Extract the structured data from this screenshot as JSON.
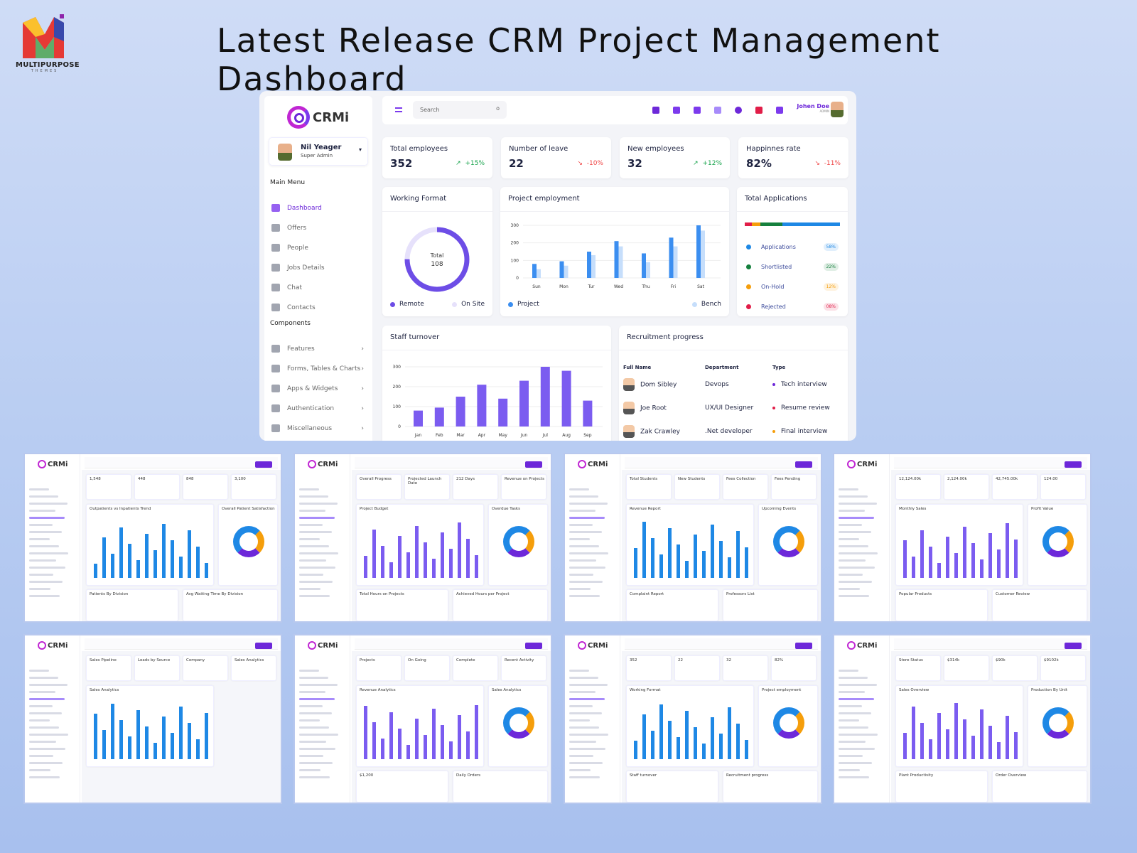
{
  "brand": {
    "logo_letter": "M",
    "name": "MULTIPURPOSE",
    "sub": "THEMES"
  },
  "headline": "Latest Release CRM Project Management Dashboard",
  "app": {
    "logo": "CRMi",
    "user": {
      "name": "Nil Yeager",
      "role": "Super Admin"
    },
    "main_menu_label": "Main Menu",
    "main_menu": [
      {
        "label": "Dashboard",
        "icon": "grid-icon",
        "active": true
      },
      {
        "label": "Offers",
        "icon": "pie-icon"
      },
      {
        "label": "People",
        "icon": "flag-icon"
      },
      {
        "label": "Jobs Details",
        "icon": "clock-icon"
      },
      {
        "label": "Chat",
        "icon": "chat-icon"
      },
      {
        "label": "Contacts",
        "icon": "contacts-icon"
      }
    ],
    "components_label": "Components",
    "components": [
      {
        "label": "Features",
        "icon": "books-icon"
      },
      {
        "label": "Forms, Tables & Charts",
        "icon": "box-icon"
      },
      {
        "label": "Apps & Widgets",
        "icon": "globe-icon"
      },
      {
        "label": "Authentication",
        "icon": "lock-icon"
      },
      {
        "label": "Miscellaneous",
        "icon": "warning-icon"
      }
    ],
    "search_placeholder": "Search",
    "topbar_icons": [
      "bell-icon",
      "layout-icon",
      "file-icon",
      "cart-icon",
      "chat-icon",
      "flag-icon",
      "fullscreen-icon"
    ],
    "profile": {
      "name": "Johen Doe",
      "role": "ADMIN"
    },
    "accent": "#6d28d9"
  },
  "stats": [
    {
      "label": "Total employees",
      "value": "352",
      "delta": "+15%",
      "dir": "up"
    },
    {
      "label": "Number of leave",
      "value": "22",
      "delta": "-10%",
      "dir": "down"
    },
    {
      "label": "New employees",
      "value": "32",
      "delta": "+12%",
      "dir": "up"
    },
    {
      "label": "Happinnes rate",
      "value": "82%",
      "delta": "-11%",
      "dir": "down"
    }
  ],
  "working_format": {
    "title": "Working Format",
    "center_label": "Total",
    "center_value": "108",
    "remote_fraction": 0.75,
    "legend": [
      "Remote",
      "On Site"
    ]
  },
  "project_employment": {
    "title": "Project employment",
    "categories": [
      "Sun",
      "Mon",
      "Tur",
      "Wed",
      "Thu",
      "Fri",
      "Sat"
    ],
    "yticks": [
      "0",
      "100",
      "200",
      "300"
    ],
    "series": [
      {
        "name": "Project",
        "values": [
          80,
          95,
          150,
          210,
          140,
          230,
          300
        ],
        "color": "#3b8ef0"
      },
      {
        "name": "Bench",
        "values": [
          50,
          70,
          130,
          180,
          90,
          180,
          270
        ],
        "color": "#c6defb"
      }
    ]
  },
  "total_applications": {
    "title": "Total Applications",
    "items": [
      {
        "label": "Applications",
        "pct": "58%",
        "color": "#1e88e5"
      },
      {
        "label": "Shortlisted",
        "pct": "22%",
        "color": "#15803d"
      },
      {
        "label": "On-Hold",
        "pct": "12%",
        "color": "#f59e0b"
      },
      {
        "label": "Rejected",
        "pct": "08%",
        "color": "#e11d48"
      }
    ]
  },
  "staff_turnover": {
    "title": "Staff turnover",
    "categories": [
      "Jan",
      "Feb",
      "Mar",
      "Apr",
      "May",
      "Jun",
      "Jul",
      "Aug",
      "Sep"
    ],
    "yticks": [
      "0",
      "100",
      "200",
      "300"
    ],
    "values": [
      80,
      95,
      150,
      210,
      140,
      230,
      300,
      280,
      130
    ]
  },
  "recruitment": {
    "title": "Recruitment progress",
    "headers": [
      "Full Name",
      "Department",
      "Type"
    ],
    "rows": [
      {
        "name": "Dom Sibley",
        "dept": "Devops",
        "type": "Tech interview",
        "color": "#6d28d9"
      },
      {
        "name": "Joe Root",
        "dept": "UX/UI Designer",
        "type": "Resume review",
        "color": "#e11d48"
      },
      {
        "name": "Zak Crawley",
        "dept": ".Net developer",
        "type": "Final interview",
        "color": "#f59e0b"
      }
    ]
  },
  "thumbnails": [
    {
      "cards": [
        "1,548",
        "448",
        "848",
        "3,100",
        "Outpatients vs Inpatients Trend",
        "Overall Patient Satisfaction",
        "Patients By Division",
        "Avg Waiting Time By Division"
      ]
    },
    {
      "cards": [
        "Overall Progress",
        "Projected Launch Date",
        "212 Days",
        "Revenue on Projects",
        "Project Budget",
        "Overdue Tasks",
        "Total Hours on Projects",
        "Achieved Hours per Project"
      ]
    },
    {
      "cards": [
        "Total Students",
        "New Students",
        "Fees Collection",
        "Fees Pending",
        "Revenue Report",
        "Upcoming Events",
        "Complaint Report",
        "Professors List"
      ]
    },
    {
      "cards": [
        "12,124.00k",
        "2,124.00k",
        "42,745.00k",
        "124.00",
        "Monthly Sales",
        "Profit Value",
        "Popular Products",
        "Customer Review"
      ]
    },
    {
      "cards": [
        "Sales Pipeline",
        "Leads by Source",
        "Company",
        "Sales Analytics",
        "Sales Analytics",
        "",
        "",
        ""
      ]
    },
    {
      "cards": [
        "Projects",
        "On Going",
        "Complete",
        "Recent Activity",
        "Revenue Analytics",
        "Sales Analytics",
        "$1,200",
        "Daily Orders"
      ]
    },
    {
      "cards": [
        "352",
        "22",
        "32",
        "82%",
        "Working Format",
        "Project employment",
        "Staff turnover",
        "Recruitment progress"
      ]
    },
    {
      "cards": [
        "Store Status",
        "$314k",
        "$90k",
        "$9102k",
        "Sales Overview",
        "Production By Unit",
        "Plant Productivity",
        "Order Overview"
      ]
    }
  ]
}
